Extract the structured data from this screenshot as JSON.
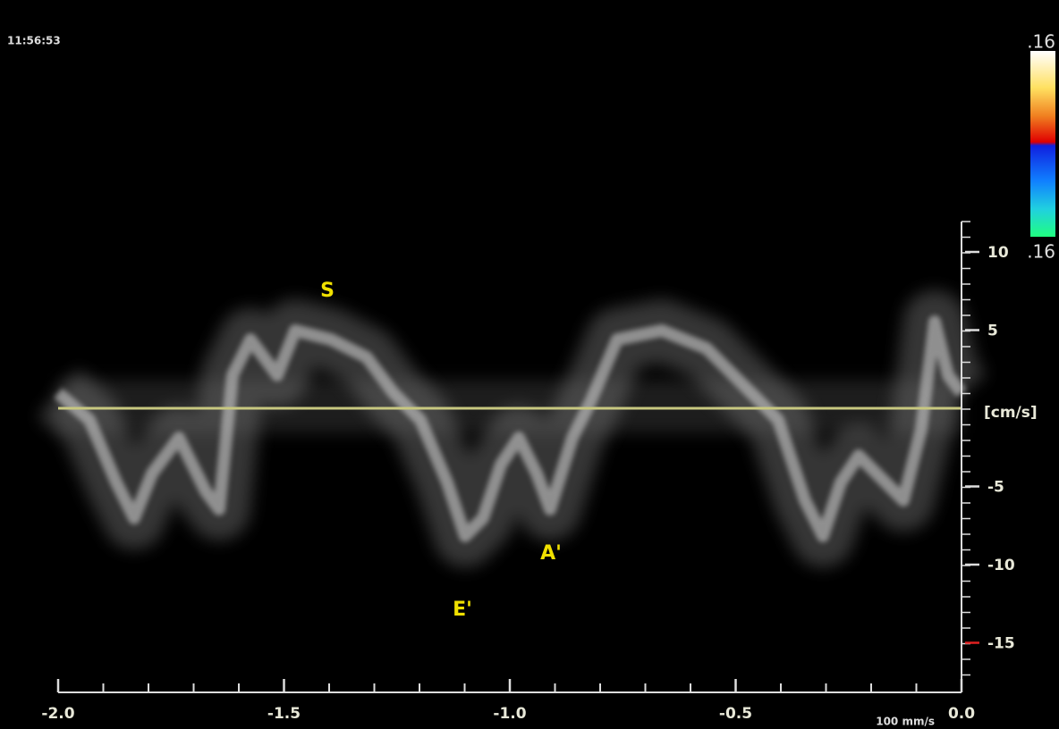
{
  "time": "11:56:53",
  "colorbar": {
    "top_label": ".16",
    "bottom_label": ".16"
  },
  "x_axis": {
    "lim": [
      -2,
      0
    ],
    "ticks": [
      {
        "value": -2,
        "label": "-2.0"
      },
      {
        "value": -1.5,
        "label": "-1.5"
      },
      {
        "value": -1,
        "label": "-1.0"
      },
      {
        "value": -0.5,
        "label": "-0.5"
      },
      {
        "value": 0,
        "label": "0.0"
      }
    ]
  },
  "y_axis": {
    "unit": "[cm/s]",
    "ticks": [
      10,
      5,
      -5,
      -10,
      -15
    ]
  },
  "sweep_speed": "100 mm/s",
  "annotations": [
    {
      "text": "S"
    },
    {
      "text": "A'"
    },
    {
      "text": "E'"
    }
  ]
}
